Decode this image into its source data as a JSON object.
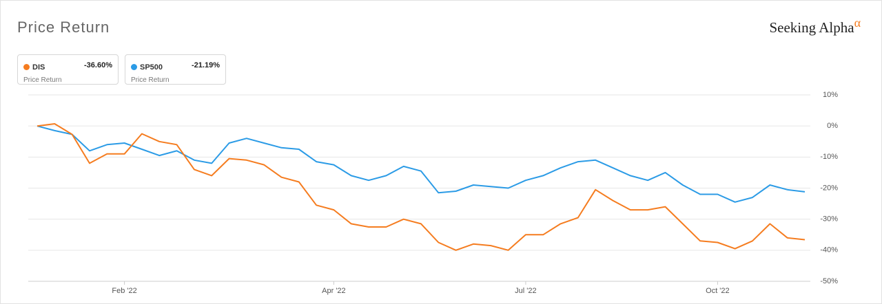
{
  "brand": "Seeking Alpha",
  "brand_mark": "α",
  "chart_data": {
    "type": "line",
    "title": "Price Return",
    "categories": [
      null,
      null,
      null,
      null,
      null,
      "Feb '22",
      null,
      null,
      null,
      null,
      null,
      null,
      null,
      null,
      null,
      null,
      null,
      "Apr '22",
      null,
      null,
      null,
      null,
      null,
      null,
      null,
      null,
      null,
      null,
      "Jul '22",
      null,
      null,
      null,
      null,
      null,
      null,
      null,
      null,
      null,
      null,
      "Oct '22",
      null,
      null,
      null,
      null,
      null
    ],
    "series": [
      {
        "name": "DIS",
        "color": "#f57c1f",
        "change_label": "-36.60%",
        "caption": "Price Return",
        "values": [
          0,
          0.7,
          -2.7,
          -12,
          -9,
          -9,
          -2.5,
          -5,
          -6,
          -14,
          -16,
          -10.5,
          -11,
          -12.5,
          -16.5,
          -18,
          -25.5,
          -27,
          -31.5,
          -32.5,
          -32.5,
          -30,
          -31.5,
          -37.5,
          -40,
          -38,
          -38.5,
          -40,
          -35,
          -35,
          -31.5,
          -29.5,
          -20.5,
          -24,
          -27,
          -27,
          -26,
          -31.5,
          -37,
          -37.5,
          -39.5,
          -37,
          -31.5,
          -36,
          -36.6
        ]
      },
      {
        "name": "SP500",
        "color": "#2b9be6",
        "change_label": "-21.19%",
        "caption": "Price Return",
        "values": [
          0,
          -1.5,
          -2.7,
          -8,
          -6,
          -5.5,
          -7.5,
          -9.5,
          -8,
          -11,
          -12,
          -5.5,
          -4,
          -5.5,
          -7,
          -7.5,
          -11.5,
          -12.5,
          -16,
          -17.5,
          -16,
          -13,
          -14.5,
          -21.5,
          -21,
          -19,
          -19.5,
          -20,
          -17.5,
          -16,
          -13.5,
          -11.5,
          -11,
          -13.5,
          -16,
          -17.5,
          -15,
          -19,
          -22,
          -22,
          -24.5,
          -23,
          -19,
          -20.5,
          -21.19
        ]
      }
    ],
    "ylim": [
      -50,
      10
    ],
    "yticks": [
      {
        "value": 10,
        "label": "10%"
      },
      {
        "value": 0,
        "label": "0%"
      },
      {
        "value": -10,
        "label": "-10%"
      },
      {
        "value": -20,
        "label": "-20%"
      },
      {
        "value": -30,
        "label": "-30%"
      },
      {
        "value": -40,
        "label": "-40%"
      },
      {
        "value": -50,
        "label": "-50%"
      }
    ],
    "grid": true
  }
}
